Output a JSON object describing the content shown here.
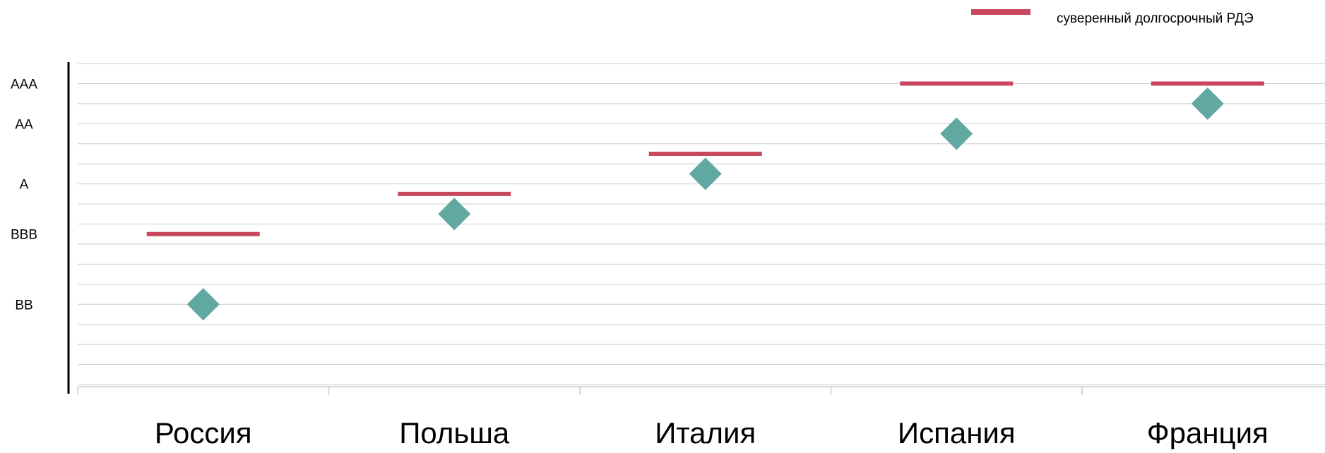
{
  "chart_data": {
    "type": "scatter",
    "categories": [
      "Россия",
      "Польша",
      "Италия",
      "Испания",
      "Франция"
    ],
    "y_tick_labels": [
      "AAA",
      "AA",
      "A",
      "BBB",
      "BB"
    ],
    "y_tick_values": [
      16,
      14,
      11,
      8.5,
      5
    ],
    "ylim": [
      1,
      17
    ],
    "grid": true,
    "legend_position": "top-right",
    "series": [
      {
        "name": "суверенный долгосрочный РДЭ",
        "marker": "bar-line",
        "color": "#c8475e",
        "values": [
          8.5,
          10.5,
          12.5,
          16,
          16
        ]
      },
      {
        "marker": "diamond",
        "color": "#62a8a2",
        "values": [
          5,
          9.5,
          11.5,
          13.5,
          15
        ]
      }
    ]
  }
}
